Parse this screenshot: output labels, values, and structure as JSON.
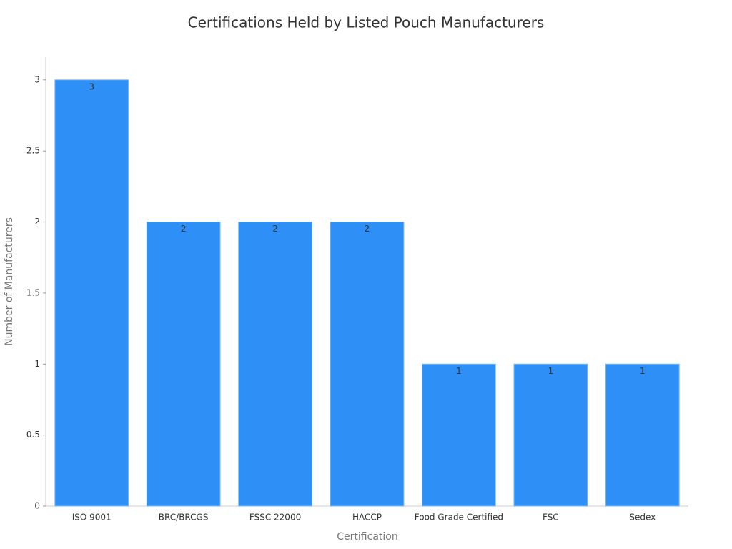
{
  "chart_data": {
    "type": "bar",
    "title": "Certifications Held by Listed Pouch Manufacturers",
    "x_label": "Certification",
    "y_label": "Number of Manufacturers",
    "categories": [
      "ISO 9001",
      "BRC/BRCGS",
      "FSSC 22000",
      "HACCP",
      "Food Grade Certified",
      "FSC",
      "Sedex"
    ],
    "values": [
      3,
      2,
      2,
      2,
      1,
      1,
      1
    ],
    "color": "#2e90f6",
    "ylim": [
      0,
      3.16
    ],
    "yticks": [
      0,
      0.5,
      1,
      1.5,
      2,
      2.5,
      3
    ],
    "grid": false
  }
}
